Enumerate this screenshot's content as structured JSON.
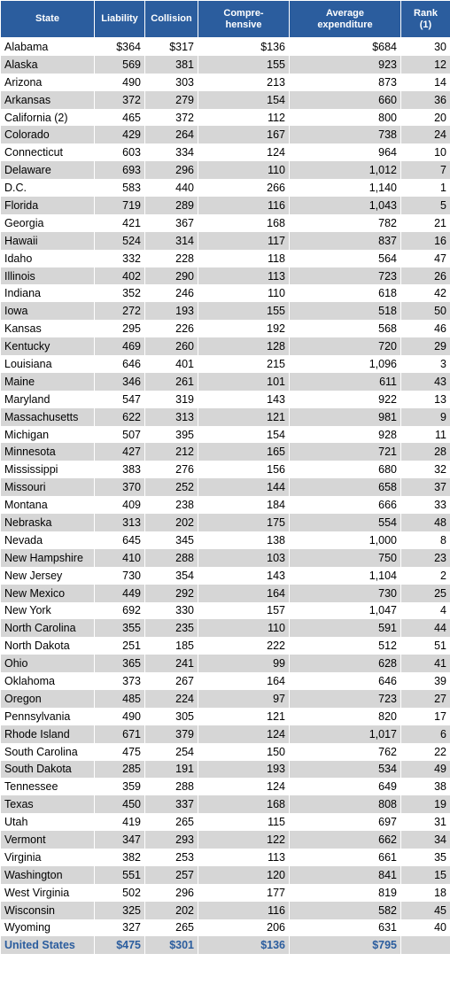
{
  "table": {
    "header": [
      [
        "State"
      ],
      [
        "Liability"
      ],
      [
        "Collision"
      ],
      [
        "Compre-",
        "hensive"
      ],
      [
        "Average",
        "expenditure"
      ],
      [
        "Rank",
        "(1)"
      ]
    ],
    "rows": [
      [
        "Alabama",
        "$364",
        "$317",
        "$136",
        "$684",
        "30"
      ],
      [
        "Alaska",
        "569",
        "381",
        "155",
        "923",
        "12"
      ],
      [
        "Arizona",
        "490",
        "303",
        "213",
        "873",
        "14"
      ],
      [
        "Arkansas",
        "372",
        "279",
        "154",
        "660",
        "36"
      ],
      [
        "California (2)",
        "465",
        "372",
        "112",
        "800",
        "20"
      ],
      [
        "Colorado",
        "429",
        "264",
        "167",
        "738",
        "24"
      ],
      [
        "Connecticut",
        "603",
        "334",
        "124",
        "964",
        "10"
      ],
      [
        "Delaware",
        "693",
        "296",
        "110",
        "1,012",
        "7"
      ],
      [
        "D.C.",
        "583",
        "440",
        "266",
        "1,140",
        "1"
      ],
      [
        "Florida",
        "719",
        "289",
        "116",
        "1,043",
        "5"
      ],
      [
        "Georgia",
        "421",
        "367",
        "168",
        "782",
        "21"
      ],
      [
        "Hawaii",
        "524",
        "314",
        "117",
        "837",
        "16"
      ],
      [
        "Idaho",
        "332",
        "228",
        "118",
        "564",
        "47"
      ],
      [
        "Illinois",
        "402",
        "290",
        "113",
        "723",
        "26"
      ],
      [
        "Indiana",
        "352",
        "246",
        "110",
        "618",
        "42"
      ],
      [
        "Iowa",
        "272",
        "193",
        "155",
        "518",
        "50"
      ],
      [
        "Kansas",
        "295",
        "226",
        "192",
        "568",
        "46"
      ],
      [
        "Kentucky",
        "469",
        "260",
        "128",
        "720",
        "29"
      ],
      [
        "Louisiana",
        "646",
        "401",
        "215",
        "1,096",
        "3"
      ],
      [
        "Maine",
        "346",
        "261",
        "101",
        "611",
        "43"
      ],
      [
        "Maryland",
        "547",
        "319",
        "143",
        "922",
        "13"
      ],
      [
        "Massachusetts",
        "622",
        "313",
        "121",
        "981",
        "9"
      ],
      [
        "Michigan",
        "507",
        "395",
        "154",
        "928",
        "11"
      ],
      [
        "Minnesota",
        "427",
        "212",
        "165",
        "721",
        "28"
      ],
      [
        "Mississippi",
        "383",
        "276",
        "156",
        "680",
        "32"
      ],
      [
        "Missouri",
        "370",
        "252",
        "144",
        "658",
        "37"
      ],
      [
        "Montana",
        "409",
        "238",
        "184",
        "666",
        "33"
      ],
      [
        "Nebraska",
        "313",
        "202",
        "175",
        "554",
        "48"
      ],
      [
        "Nevada",
        "645",
        "345",
        "138",
        "1,000",
        "8"
      ],
      [
        "New Hampshire",
        "410",
        "288",
        "103",
        "750",
        "23"
      ],
      [
        "New Jersey",
        "730",
        "354",
        "143",
        "1,104",
        "2"
      ],
      [
        "New Mexico",
        "449",
        "292",
        "164",
        "730",
        "25"
      ],
      [
        "New York",
        "692",
        "330",
        "157",
        "1,047",
        "4"
      ],
      [
        "North Carolina",
        "355",
        "235",
        "110",
        "591",
        "44"
      ],
      [
        "North Dakota",
        "251",
        "185",
        "222",
        "512",
        "51"
      ],
      [
        "Ohio",
        "365",
        "241",
        "99",
        "628",
        "41"
      ],
      [
        "Oklahoma",
        "373",
        "267",
        "164",
        "646",
        "39"
      ],
      [
        "Oregon",
        "485",
        "224",
        "97",
        "723",
        "27"
      ],
      [
        "Pennsylvania",
        "490",
        "305",
        "121",
        "820",
        "17"
      ],
      [
        "Rhode Island",
        "671",
        "379",
        "124",
        "1,017",
        "6"
      ],
      [
        "South Carolina",
        "475",
        "254",
        "150",
        "762",
        "22"
      ],
      [
        "South Dakota",
        "285",
        "191",
        "193",
        "534",
        "49"
      ],
      [
        "Tennessee",
        "359",
        "288",
        "124",
        "649",
        "38"
      ],
      [
        "Texas",
        "450",
        "337",
        "168",
        "808",
        "19"
      ],
      [
        "Utah",
        "419",
        "265",
        "115",
        "697",
        "31"
      ],
      [
        "Vermont",
        "347",
        "293",
        "122",
        "662",
        "34"
      ],
      [
        "Virginia",
        "382",
        "253",
        "113",
        "661",
        "35"
      ],
      [
        "Washington",
        "551",
        "257",
        "120",
        "841",
        "15"
      ],
      [
        "West Virginia",
        "502",
        "296",
        "177",
        "819",
        "18"
      ],
      [
        "Wisconsin",
        "325",
        "202",
        "116",
        "582",
        "45"
      ],
      [
        "Wyoming",
        "327",
        "265",
        "206",
        "631",
        "40"
      ],
      [
        "United States",
        "$475",
        "$301",
        "$136",
        "$795"
      ]
    ]
  }
}
